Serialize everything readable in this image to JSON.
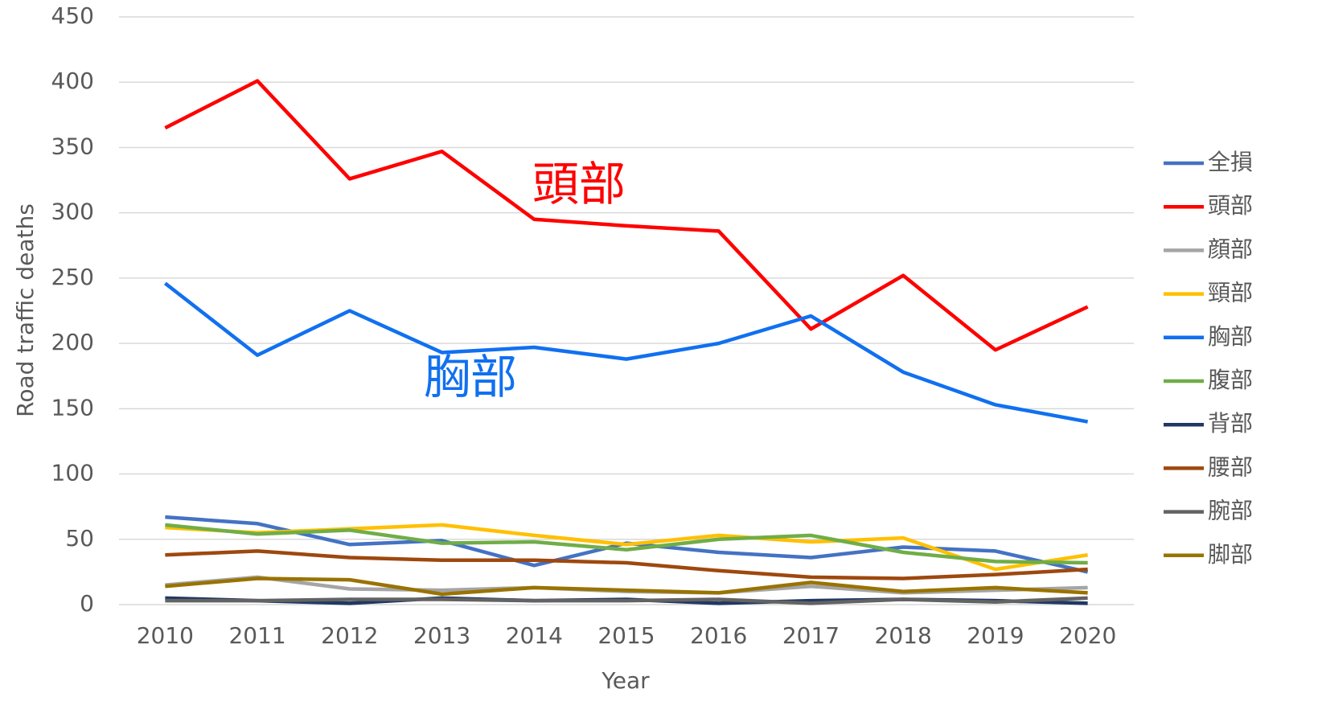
{
  "chart_data": {
    "type": "line",
    "x_label": "Year",
    "y_label": "Road traffic deaths",
    "categories": [
      "2010",
      "2011",
      "2012",
      "2013",
      "2014",
      "2015",
      "2016",
      "2017",
      "2018",
      "2019",
      "2020"
    ],
    "ylim": [
      0,
      450
    ],
    "yticks": [
      0,
      50,
      100,
      150,
      200,
      250,
      300,
      350,
      400,
      450
    ],
    "grid": true,
    "legend": "right",
    "annotations": [
      {
        "text": "頭部",
        "color": "#ff0000"
      },
      {
        "text": "胸部",
        "color": "#1070f0"
      }
    ],
    "series": [
      {
        "name": "全損",
        "color": "#4472c4",
        "values": [
          67,
          62,
          46,
          49,
          30,
          47,
          40,
          36,
          44,
          41,
          25
        ]
      },
      {
        "name": "頭部",
        "color": "#ff0000",
        "values": [
          365,
          401,
          326,
          347,
          295,
          290,
          286,
          211,
          252,
          195,
          228
        ]
      },
      {
        "name": "顔部",
        "color": "#a5a5a5",
        "values": [
          15,
          21,
          12,
          11,
          13,
          10,
          9,
          14,
          9,
          11,
          13
        ]
      },
      {
        "name": "頸部",
        "color": "#ffc000",
        "values": [
          59,
          55,
          58,
          61,
          53,
          46,
          53,
          48,
          51,
          27,
          38
        ]
      },
      {
        "name": "胸部",
        "color": "#1070f0",
        "values": [
          246,
          191,
          225,
          193,
          197,
          188,
          200,
          221,
          178,
          153,
          140
        ]
      },
      {
        "name": "腹部",
        "color": "#70ad47",
        "values": [
          61,
          54,
          57,
          47,
          48,
          42,
          50,
          53,
          40,
          33,
          32
        ]
      },
      {
        "name": "背部",
        "color": "#203864",
        "values": [
          5,
          3,
          1,
          5,
          3,
          4,
          1,
          3,
          4,
          3,
          1
        ]
      },
      {
        "name": "腰部",
        "color": "#9e480e",
        "values": [
          38,
          41,
          36,
          34,
          34,
          32,
          26,
          21,
          20,
          23,
          27
        ]
      },
      {
        "name": "腕部",
        "color": "#636363",
        "values": [
          3,
          3,
          4,
          4,
          3,
          3,
          4,
          1,
          4,
          2,
          5
        ]
      },
      {
        "name": "脚部",
        "color": "#997300",
        "values": [
          14,
          20,
          19,
          8,
          13,
          11,
          9,
          17,
          10,
          13,
          9
        ]
      }
    ]
  }
}
